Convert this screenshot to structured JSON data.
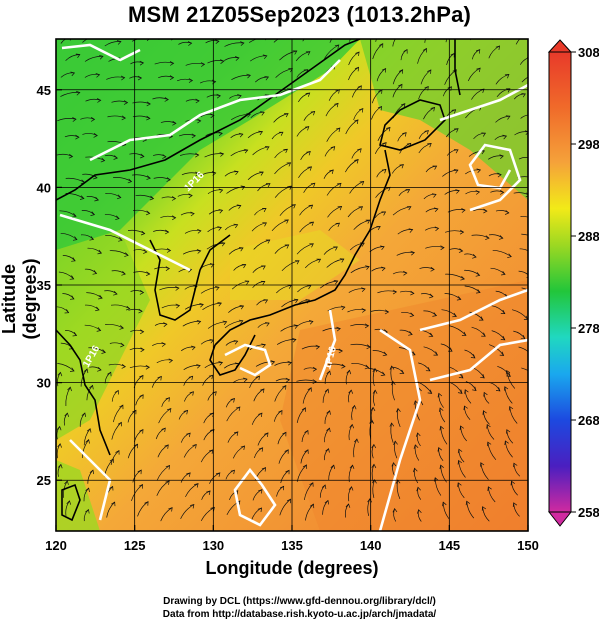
{
  "title": "MSM 21Z05Sep2023 (1013.2hPa)",
  "axes": {
    "xlabel": "Longitude (degrees)",
    "ylabel": "Latitude  (degrees)",
    "x_ticks": [
      "120",
      "125",
      "130",
      "135",
      "140",
      "145",
      "150"
    ],
    "y_ticks": [
      "25",
      "30",
      "35",
      "40",
      "45"
    ],
    "xlim": [
      120,
      150
    ],
    "ylim": [
      22.4,
      47.6
    ]
  },
  "colorbar": {
    "ticks": [
      "308",
      "298",
      "288",
      "278",
      "268",
      "258"
    ],
    "min": 258,
    "max": 308,
    "colors": [
      "#d02aa0",
      "#4a1fc0",
      "#1c49e0",
      "#1aa8ee",
      "#20d8c0",
      "#22c63a",
      "#9cd822",
      "#f2ea18",
      "#f5a23a",
      "#f06a2a",
      "#e83a2a"
    ]
  },
  "contour_labels": [
    "1P16",
    "1P16",
    "1P16"
  ],
  "credits": {
    "line1": "Drawing by DCL (https://www.gfd-dennou.org/library/dcl/)",
    "line2": "Data from http://database.rish.kyoto-u.ac.jp/arch/jmadata/"
  }
}
